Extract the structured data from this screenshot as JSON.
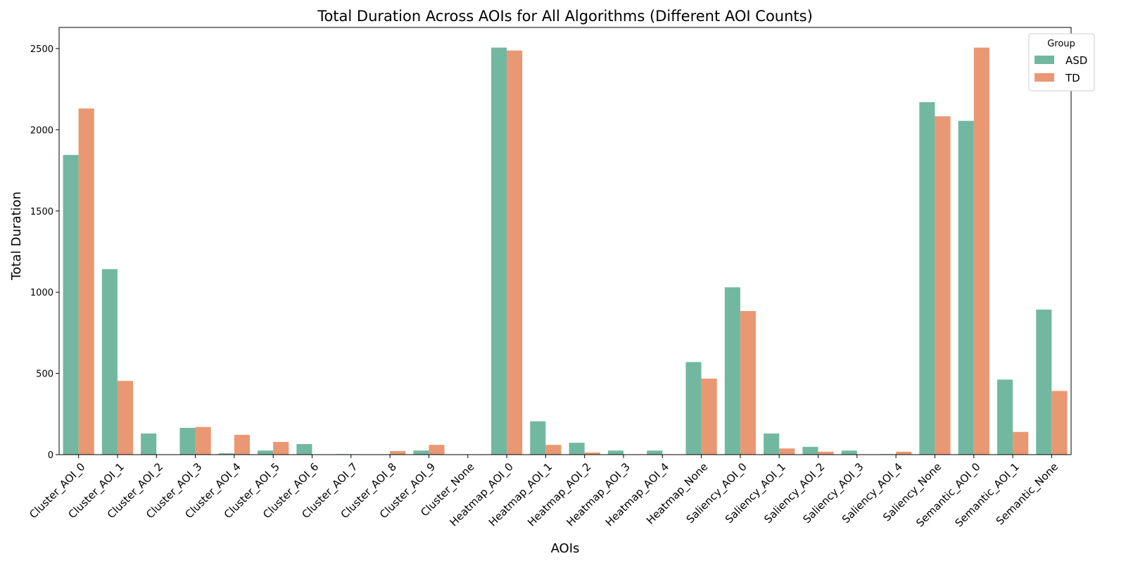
{
  "chart_data": {
    "type": "bar",
    "title": "Total Duration Across AOIs for All Algorithms (Different AOI Counts)",
    "xlabel": "AOIs",
    "ylabel": "Total Duration",
    "ylim": [
      0,
      2630
    ],
    "yticks": [
      0,
      500,
      1000,
      1500,
      2000,
      2500
    ],
    "grid": false,
    "legend": {
      "title": "Group",
      "placement": "top-right"
    },
    "categories": [
      "Cluster_AOI_0",
      "Cluster_AOI_1",
      "Cluster_AOI_2",
      "Cluster_AOI_3",
      "Cluster_AOI_4",
      "Cluster_AOI_5",
      "Cluster_AOI_6",
      "Cluster_AOI_7",
      "Cluster_AOI_8",
      "Cluster_AOI_9",
      "Cluster_None",
      "Heatmap_AOI_0",
      "Heatmap_AOI_1",
      "Heatmap_AOI_2",
      "Heatmap_AOI_3",
      "Heatmap_AOI_4",
      "Heatmap_None",
      "Saliency_AOI_0",
      "Saliency_AOI_1",
      "Saliency_AOI_2",
      "Saliency_AOI_3",
      "Saliency_AOI_4",
      "Saliency_None",
      "Semantic_AOI_0",
      "Semantic_AOI_1",
      "Semantic_None"
    ],
    "series": [
      {
        "name": "ASD",
        "color": "#72b8a0",
        "values": [
          1845,
          1142,
          130,
          165,
          8,
          25,
          65,
          3,
          0,
          25,
          0,
          2506,
          205,
          73,
          25,
          25,
          570,
          1030,
          130,
          48,
          25,
          3,
          2170,
          2055,
          462,
          893
        ]
      },
      {
        "name": "TD",
        "color": "#e99873",
        "values": [
          2131,
          454,
          0,
          170,
          122,
          78,
          0,
          0,
          22,
          60,
          0,
          2488,
          60,
          13,
          0,
          0,
          468,
          884,
          38,
          18,
          0,
          18,
          2083,
          2506,
          140,
          392
        ]
      }
    ]
  }
}
